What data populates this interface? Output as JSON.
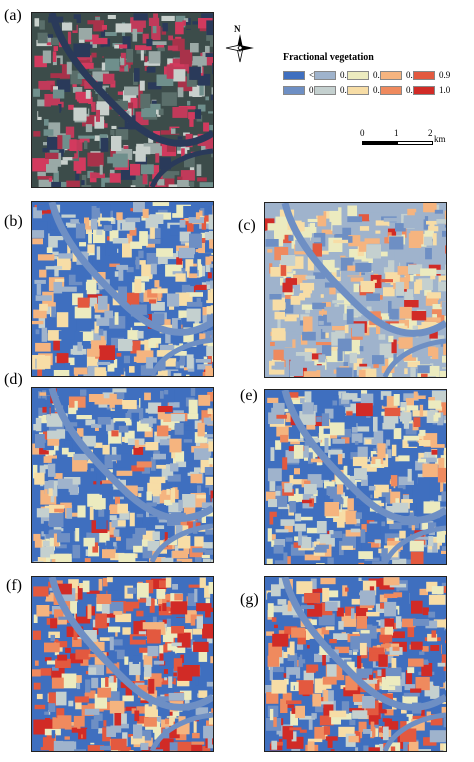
{
  "panels": {
    "a": "(a)",
    "b": "(b)",
    "c": "(c)",
    "d": "(d)",
    "e": "(e)",
    "f": "(f)",
    "g": "(g)"
  },
  "north": {
    "label": "N"
  },
  "legend": {
    "title": "Fractional vegetation",
    "items": [
      {
        "label": "<0.1",
        "color": "#3f6fbf"
      },
      {
        "label": "0.2",
        "color": "#6e8fc4"
      },
      {
        "label": "0.3",
        "color": "#9fb3cc"
      },
      {
        "label": "0.4",
        "color": "#c4d0cf"
      },
      {
        "label": "0.5",
        "color": "#ecebbf"
      },
      {
        "label": "0.6",
        "color": "#f7dda6"
      },
      {
        "label": "0.7",
        "color": "#f5b47f"
      },
      {
        "label": "0.8",
        "color": "#ef8a5e"
      },
      {
        "label": "0.9",
        "color": "#e3593f"
      },
      {
        "label": "1.0",
        "color": "#d12b26"
      }
    ]
  },
  "scale": {
    "ticks": [
      "0",
      "1",
      "2"
    ],
    "unit": "km"
  }
}
